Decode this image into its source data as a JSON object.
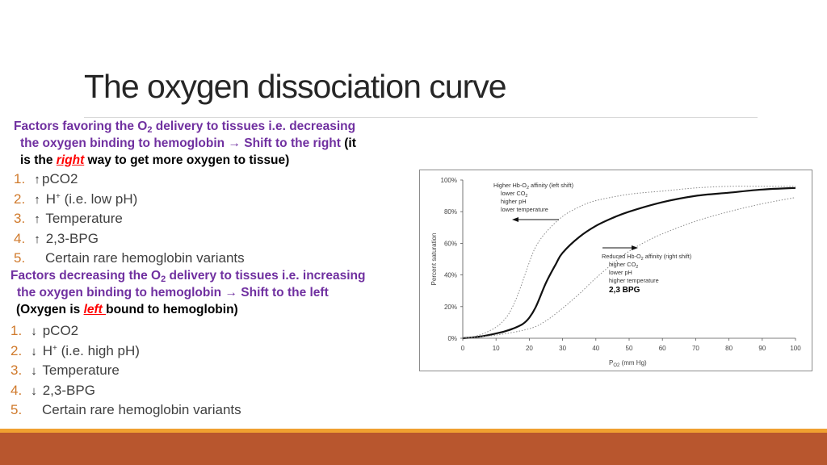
{
  "slide": {
    "title": "The oxygen dissociation curve",
    "colors": {
      "heading": "#7030a0",
      "emphasis": "#ff0000",
      "list_number": "#d07a2c",
      "bottom_bar": "#b8562e",
      "bottom_line": "#f0a030"
    }
  },
  "section1": {
    "l1a": "Factors favoring the O",
    "sub": "2",
    "l1b": " delivery to tissues i.e. decreasing",
    "l2": "the oxygen binding to hemoglobin ",
    "arrow": "→",
    "shift": " Shift to the right",
    "paren_open": " (it",
    "l3a": "is the ",
    "emph": "right",
    "l3b": " way to get more oxygen to tissue)"
  },
  "list1": [
    {
      "num": "1.",
      "arrow": "↑",
      "label": "pCO2"
    },
    {
      "num": "2.",
      "arrow": "↑",
      "label": " H",
      "sup": "+",
      "label2": " (i.e. low pH)"
    },
    {
      "num": "3.",
      "arrow": "↑",
      "label": " Temperature"
    },
    {
      "num": "4.",
      "arrow": "↑",
      "label": " 2,3-BPG"
    },
    {
      "num": "5.",
      "label": "Certain rare hemoglobin variants"
    }
  ],
  "section2": {
    "l1a": "Factors decreasing the O",
    "sub": "2",
    "l1b": " delivery to tissues i.e. increasing",
    "l2": "the oxygen binding to hemoglobin ",
    "arrow": "→",
    "shift": " Shift to the left",
    "l3a": "(Oxygen is ",
    "emph": "left ",
    "l3b": " bound to hemoglobin)"
  },
  "list2": [
    {
      "num": "1.",
      "arrow": "↓",
      "label": " pCO2"
    },
    {
      "num": "2.",
      "arrow": "↓",
      "label": " H",
      "sup": "+",
      "label2": " (i.e. high pH)"
    },
    {
      "num": "3.",
      "arrow": "↓",
      "label": " Temperature"
    },
    {
      "num": "4.",
      "arrow": "↓",
      "label": " 2,3-BPG"
    },
    {
      "num": "5.",
      "label": "Certain rare hemoglobin variants"
    }
  ],
  "chart_data": {
    "type": "line",
    "xlabel_main": "P",
    "xlabel_sub": "O2",
    "xlabel_unit": " (mm Hg)",
    "ylabel": "Percent saturation",
    "x_ticks": [
      "0",
      "10",
      "20",
      "30",
      "40",
      "50",
      "60",
      "70",
      "80",
      "90",
      "100"
    ],
    "y_ticks": [
      "0%",
      "20%",
      "40%",
      "60%",
      "80%",
      "100%"
    ],
    "xlim": [
      0,
      100
    ],
    "ylim": [
      0,
      100
    ],
    "series": [
      {
        "style": "solid",
        "x": [
          0,
          5,
          10,
          12,
          15,
          18,
          20,
          22,
          25,
          28,
          30,
          35,
          40,
          45,
          50,
          60,
          70,
          80,
          90,
          100
        ],
        "y": [
          0,
          1,
          3,
          4,
          6,
          9,
          13,
          20,
          35,
          47,
          54,
          64,
          71,
          76,
          80,
          86,
          90,
          92,
          94,
          95
        ]
      },
      {
        "style": "dotted",
        "x": [
          0,
          5,
          10,
          13,
          15,
          17,
          20,
          22,
          25,
          30,
          35,
          40,
          50,
          60,
          70,
          80,
          90,
          100
        ],
        "y": [
          0,
          2,
          7,
          13,
          20,
          30,
          48,
          58,
          67,
          77,
          83,
          87,
          91,
          93,
          95,
          96,
          96,
          96
        ]
      },
      {
        "style": "dotted",
        "x": [
          0,
          10,
          20,
          25,
          30,
          35,
          40,
          45,
          50,
          55,
          60,
          70,
          80,
          90,
          100
        ],
        "y": [
          0,
          2,
          6,
          11,
          19,
          28,
          38,
          47,
          55,
          61,
          66,
          74,
          80,
          85,
          89
        ]
      }
    ],
    "annotations": {
      "left": {
        "l1a": "Higher Hb-O",
        "l1sub": "2",
        "l1b": " affinity (left shift)",
        "l2": "lower CO",
        "l2sub": "2",
        "l3": "higher pH",
        "l4": "lower temperature"
      },
      "right": {
        "l1a": "Reduced Hb-O",
        "l1sub": "2",
        "l1b": " affinity (right shift)",
        "l2": "higher CO",
        "l2sub": "2",
        "l3": "lower pH",
        "l4": "higher temperature"
      },
      "bpg": "2,3 BPG"
    }
  }
}
